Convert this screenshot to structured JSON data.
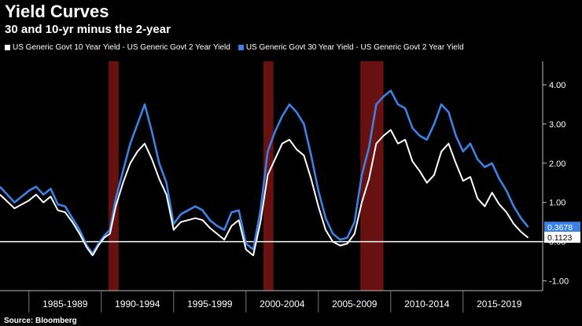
{
  "title": "Yield Curves",
  "subtitle": "30 and 10-yr minus the 2-year",
  "source": "Source: Bloomberg",
  "chart_data": {
    "type": "line",
    "title": "Yield Curves",
    "subtitle": "30 and 10-yr minus the 2-year",
    "xlim": [
      1983.0,
      2020.5
    ],
    "ylim": [
      -1.25,
      4.6
    ],
    "y_ticks": [
      4.0,
      3.0,
      2.0,
      1.0,
      0.0,
      -1.0
    ],
    "y_tick_labels": [
      "4.00",
      "3.00",
      "2.00",
      "1.00",
      "0.00",
      "-1.00"
    ],
    "x_ticks": [
      "1985-1989",
      "1990-1994",
      "1995-1999",
      "2000-2004",
      "2005-2009",
      "2010-2014",
      "2015-2019"
    ],
    "zero_line": 0.0,
    "recessions": [
      [
        1990.5,
        1991.2
      ],
      [
        2001.2,
        2001.9
      ],
      [
        2007.9,
        2009.5
      ]
    ],
    "series": [
      {
        "name": "US Generic Govt 10 Year Yield - US Generic Govt 2 Year Yield",
        "color": "#ffffff",
        "last_value": "0.1123",
        "x": [
          1983.0,
          1984.0,
          1985.0,
          1985.5,
          1986.0,
          1986.5,
          1987.0,
          1987.5,
          1988.0,
          1988.5,
          1989.0,
          1989.4,
          1989.8,
          1990.2,
          1990.6,
          1991.0,
          1991.5,
          1992.0,
          1992.5,
          1993.0,
          1993.5,
          1994.0,
          1994.5,
          1995.0,
          1995.5,
          1996.0,
          1996.5,
          1997.0,
          1997.5,
          1998.0,
          1998.5,
          1999.0,
          1999.5,
          2000.0,
          2000.5,
          2001.0,
          2001.5,
          2002.0,
          2002.5,
          2003.0,
          2003.5,
          2004.0,
          2004.5,
          2005.0,
          2005.5,
          2006.0,
          2006.5,
          2007.0,
          2007.5,
          2008.0,
          2008.5,
          2009.0,
          2009.5,
          2010.0,
          2010.5,
          2011.0,
          2011.5,
          2012.0,
          2012.5,
          2013.0,
          2013.5,
          2014.0,
          2014.5,
          2015.0,
          2015.5,
          2016.0,
          2016.5,
          2017.0,
          2017.5,
          2018.0,
          2018.5,
          2019.0,
          2019.5
        ],
        "values": [
          1.2,
          0.85,
          1.05,
          1.2,
          1.0,
          1.15,
          0.8,
          0.75,
          0.5,
          0.2,
          -0.15,
          -0.35,
          -0.1,
          0.1,
          0.2,
          0.9,
          1.5,
          2.0,
          2.3,
          2.5,
          2.1,
          1.6,
          1.2,
          0.3,
          0.5,
          0.55,
          0.6,
          0.55,
          0.35,
          0.2,
          0.05,
          0.4,
          0.55,
          -0.2,
          -0.35,
          0.5,
          1.7,
          2.1,
          2.5,
          2.6,
          2.35,
          2.2,
          1.6,
          0.9,
          0.3,
          0.0,
          -0.1,
          -0.05,
          0.2,
          1.0,
          1.6,
          2.5,
          2.7,
          2.85,
          2.5,
          2.6,
          2.05,
          1.8,
          1.5,
          1.7,
          2.3,
          2.5,
          2.0,
          1.55,
          1.65,
          1.1,
          0.9,
          1.25,
          0.95,
          0.75,
          0.45,
          0.25,
          0.1
        ]
      },
      {
        "name": "US Generic Govt 30 Year Yield - US Generic Govt 2 Year Yield",
        "color": "#3b82e6",
        "last_value": "0.3678",
        "x": [
          1983.0,
          1984.0,
          1985.0,
          1985.5,
          1986.0,
          1986.5,
          1987.0,
          1987.5,
          1988.0,
          1988.5,
          1989.0,
          1989.4,
          1989.8,
          1990.2,
          1990.6,
          1991.0,
          1991.5,
          1992.0,
          1992.5,
          1993.0,
          1993.5,
          1994.0,
          1994.5,
          1995.0,
          1995.5,
          1996.0,
          1996.5,
          1997.0,
          1997.5,
          1998.0,
          1998.5,
          1999.0,
          1999.5,
          2000.0,
          2000.5,
          2001.0,
          2001.5,
          2002.0,
          2002.5,
          2003.0,
          2003.5,
          2004.0,
          2004.5,
          2005.0,
          2005.5,
          2006.0,
          2006.5,
          2007.0,
          2007.5,
          2008.0,
          2008.5,
          2009.0,
          2009.5,
          2010.0,
          2010.5,
          2011.0,
          2011.5,
          2012.0,
          2012.5,
          2013.0,
          2013.5,
          2014.0,
          2014.5,
          2015.0,
          2015.5,
          2016.0,
          2016.5,
          2017.0,
          2017.5,
          2018.0,
          2018.5,
          2019.0,
          2019.5
        ],
        "values": [
          1.4,
          1.0,
          1.3,
          1.4,
          1.2,
          1.35,
          0.95,
          0.9,
          0.6,
          0.3,
          -0.1,
          -0.3,
          -0.05,
          0.15,
          0.3,
          1.1,
          1.8,
          2.5,
          3.0,
          3.5,
          2.8,
          2.0,
          1.5,
          0.45,
          0.7,
          0.8,
          0.9,
          0.8,
          0.55,
          0.4,
          0.3,
          0.75,
          0.8,
          -0.05,
          -0.2,
          0.8,
          2.3,
          2.8,
          3.2,
          3.5,
          3.3,
          3.0,
          2.2,
          1.3,
          0.6,
          0.2,
          0.05,
          0.1,
          0.5,
          1.7,
          2.4,
          3.5,
          3.7,
          3.85,
          3.5,
          3.4,
          2.9,
          2.7,
          2.6,
          3.0,
          3.5,
          3.3,
          2.7,
          2.3,
          2.5,
          2.1,
          1.9,
          2.0,
          1.6,
          1.3,
          0.9,
          0.6,
          0.37
        ]
      }
    ]
  }
}
